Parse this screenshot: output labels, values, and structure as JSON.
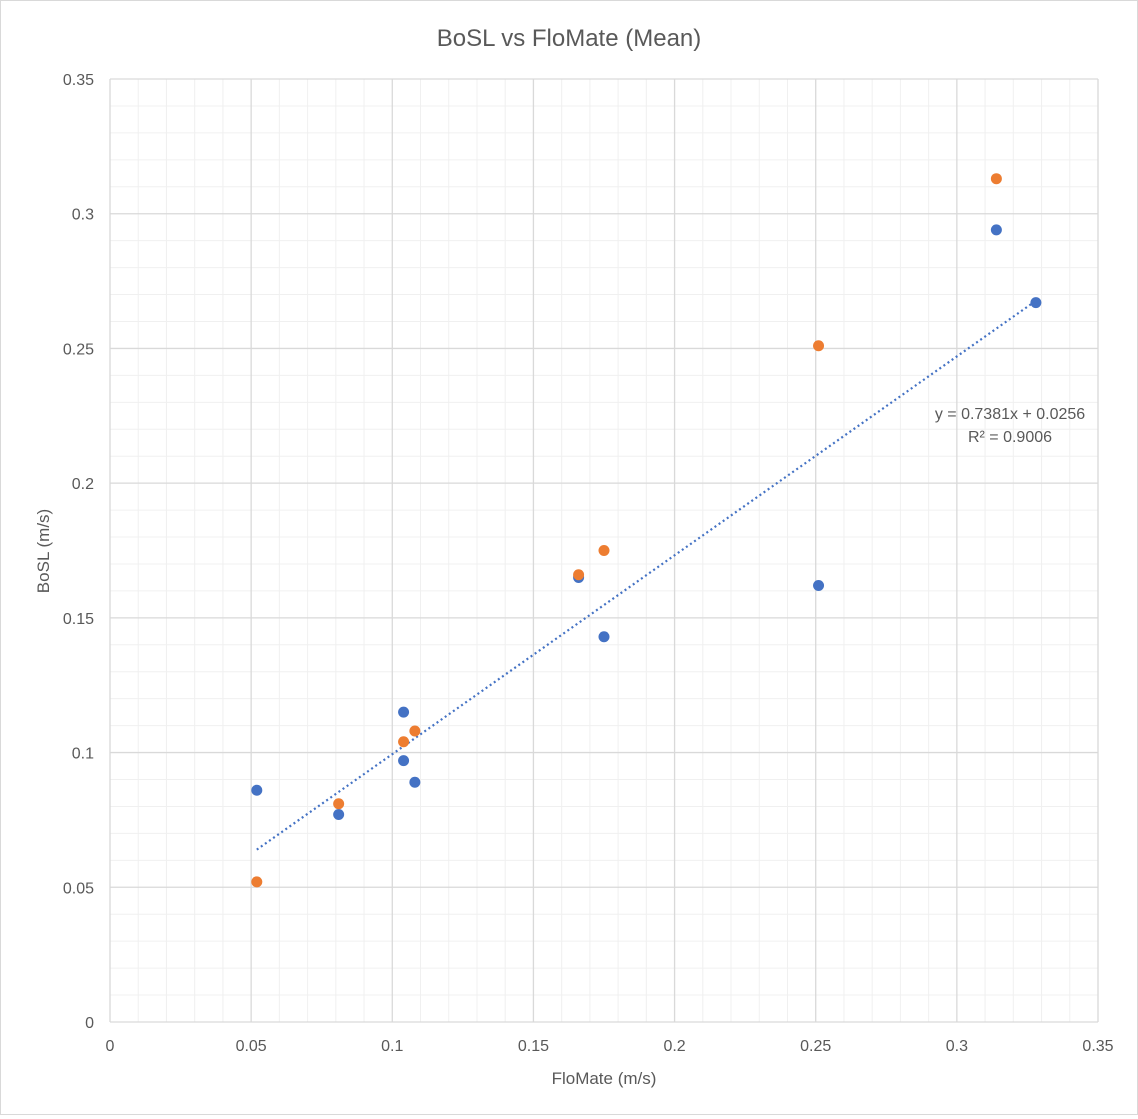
{
  "chart_data": {
    "type": "scatter",
    "title": "BoSL vs FloMate (Mean)",
    "xlabel": "FloMate (m/s)",
    "ylabel": "BoSL (m/s)",
    "xlim": [
      0,
      0.35
    ],
    "ylim": [
      0,
      0.35
    ],
    "x_ticks": [
      "0",
      "0.05",
      "0.1",
      "0.15",
      "0.2",
      "0.25",
      "0.3",
      "0.35"
    ],
    "y_ticks": [
      "0",
      "0.05",
      "0.1",
      "0.15",
      "0.2",
      "0.25",
      "0.3",
      "0.35"
    ],
    "grid": true,
    "legend": "none",
    "series": [
      {
        "color": "#4472c4",
        "points": [
          {
            "x": 0.052,
            "y": 0.086
          },
          {
            "x": 0.081,
            "y": 0.077
          },
          {
            "x": 0.104,
            "y": 0.115
          },
          {
            "x": 0.104,
            "y": 0.097
          },
          {
            "x": 0.108,
            "y": 0.089
          },
          {
            "x": 0.166,
            "y": 0.165
          },
          {
            "x": 0.175,
            "y": 0.143
          },
          {
            "x": 0.251,
            "y": 0.162
          },
          {
            "x": 0.314,
            "y": 0.294
          },
          {
            "x": 0.328,
            "y": 0.267
          }
        ]
      },
      {
        "color": "#ed7d31",
        "points": [
          {
            "x": 0.052,
            "y": 0.052
          },
          {
            "x": 0.081,
            "y": 0.081
          },
          {
            "x": 0.104,
            "y": 0.104
          },
          {
            "x": 0.108,
            "y": 0.108
          },
          {
            "x": 0.166,
            "y": 0.166
          },
          {
            "x": 0.175,
            "y": 0.175
          },
          {
            "x": 0.251,
            "y": 0.251
          },
          {
            "x": 0.314,
            "y": 0.313
          }
        ]
      }
    ],
    "trendline": {
      "series_index": 0,
      "slope": 0.7381,
      "intercept": 0.0256,
      "x_range": [
        0.052,
        0.328
      ],
      "color": "#4472c4",
      "equation_label": "y = 0.7381x + 0.0256",
      "r2_label": "R² = 0.9006"
    }
  }
}
